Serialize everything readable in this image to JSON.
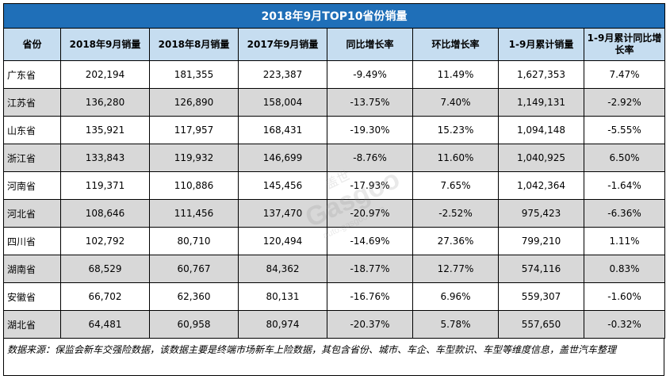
{
  "chart_data": {
    "type": "table",
    "title": "2018年9月TOP10省份销量",
    "columns": [
      "省份",
      "2018年9月销量",
      "2018年8月销量",
      "2017年9月销量",
      "同比增长率",
      "环比增长率",
      "1-9月累计销量",
      "1-9月累计同比增长率"
    ],
    "rows": [
      [
        "广东省",
        "202,194",
        "181,355",
        "223,387",
        "-9.49%",
        "11.49%",
        "1,627,353",
        "7.47%"
      ],
      [
        "江苏省",
        "136,280",
        "126,890",
        "158,004",
        "-13.75%",
        "7.40%",
        "1,149,131",
        "-2.92%"
      ],
      [
        "山东省",
        "135,921",
        "117,957",
        "168,431",
        "-19.30%",
        "15.23%",
        "1,094,148",
        "-5.55%"
      ],
      [
        "浙江省",
        "133,843",
        "119,932",
        "146,699",
        "-8.76%",
        "11.60%",
        "1,040,925",
        "6.50%"
      ],
      [
        "河南省",
        "119,371",
        "110,886",
        "145,456",
        "-17.93%",
        "7.65%",
        "1,042,364",
        "-1.64%"
      ],
      [
        "河北省",
        "108,646",
        "111,456",
        "137,470",
        "-20.97%",
        "-2.52%",
        "975,423",
        "-6.36%"
      ],
      [
        "四川省",
        "102,792",
        "80,710",
        "120,494",
        "-14.69%",
        "27.36%",
        "799,210",
        "1.11%"
      ],
      [
        "湖南省",
        "68,529",
        "60,767",
        "84,362",
        "-18.77%",
        "12.77%",
        "574,116",
        "0.83%"
      ],
      [
        "安徽省",
        "66,702",
        "62,360",
        "80,131",
        "-16.76%",
        "6.96%",
        "559,307",
        "-1.60%"
      ],
      [
        "湖北省",
        "64,481",
        "60,958",
        "80,974",
        "-20.37%",
        "5.78%",
        "557,650",
        "-0.32%"
      ]
    ],
    "footnote": "数据来源：保监会新车交强险数据，该数据主要是终端市场新车上险数据，其包含省份、城市、车企、车型款识、车型等维度信息，盖世汽车整理"
  },
  "colors": {
    "title_bg": "#1f6fb8",
    "header_bg": "#c6ddf0",
    "shade_row": "#d8d8d8"
  },
  "watermark": {
    "brand": "Gasgoo",
    "cn": "盖世",
    "url": "auto.gasgoo.com"
  }
}
